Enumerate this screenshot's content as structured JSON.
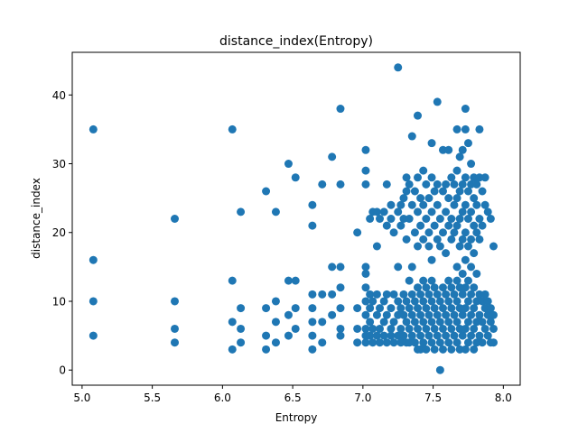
{
  "chart_data": {
    "type": "scatter",
    "title": "distance_index(Entropy)",
    "xlabel": "Entropy",
    "ylabel": "distance_index",
    "xlim": [
      4.93,
      8.12
    ],
    "ylim": [
      -2.2,
      46.2
    ],
    "xticks": [
      5.0,
      5.5,
      6.0,
      6.5,
      7.0,
      7.5,
      8.0
    ],
    "xtick_labels": [
      "5.0",
      "5.5",
      "6.0",
      "6.5",
      "7.0",
      "7.5",
      "8.0"
    ],
    "yticks": [
      0,
      10,
      20,
      30,
      40
    ],
    "ytick_labels": [
      "0",
      "10",
      "20",
      "30",
      "40"
    ],
    "grid": false,
    "point_color": "#1f77b4",
    "series": [
      {
        "points": [
          [
            5.08,
            35
          ],
          [
            5.08,
            16
          ],
          [
            5.08,
            10
          ],
          [
            5.08,
            5
          ],
          [
            5.66,
            22
          ],
          [
            5.66,
            10
          ],
          [
            5.66,
            6
          ],
          [
            5.66,
            4
          ],
          [
            6.07,
            35
          ],
          [
            6.07,
            13
          ],
          [
            6.07,
            7
          ],
          [
            6.07,
            3
          ],
          [
            6.13,
            23
          ],
          [
            6.13,
            9
          ],
          [
            6.13,
            6
          ],
          [
            6.13,
            4
          ],
          [
            6.31,
            26
          ],
          [
            6.31,
            9
          ],
          [
            6.31,
            5
          ],
          [
            6.31,
            3
          ],
          [
            6.38,
            23
          ],
          [
            6.38,
            10
          ],
          [
            6.38,
            7
          ],
          [
            6.38,
            4
          ],
          [
            6.47,
            30
          ],
          [
            6.47,
            13
          ],
          [
            6.47,
            8
          ],
          [
            6.47,
            5
          ],
          [
            6.52,
            28
          ],
          [
            6.52,
            13
          ],
          [
            6.52,
            9
          ],
          [
            6.52,
            6
          ],
          [
            6.64,
            24
          ],
          [
            6.64,
            21
          ],
          [
            6.64,
            11
          ],
          [
            6.64,
            9
          ],
          [
            6.64,
            7
          ],
          [
            6.64,
            5
          ],
          [
            6.64,
            3
          ],
          [
            6.71,
            27
          ],
          [
            6.71,
            11
          ],
          [
            6.71,
            7
          ],
          [
            6.71,
            4
          ],
          [
            6.78,
            31
          ],
          [
            6.78,
            15
          ],
          [
            6.78,
            11
          ],
          [
            6.78,
            8
          ],
          [
            6.84,
            38
          ],
          [
            6.84,
            27
          ],
          [
            6.84,
            15
          ],
          [
            6.84,
            12
          ],
          [
            6.84,
            9
          ],
          [
            6.84,
            6
          ],
          [
            6.84,
            5
          ],
          [
            6.96,
            20
          ],
          [
            6.96,
            9
          ],
          [
            6.96,
            6
          ],
          [
            6.96,
            4
          ],
          [
            7.02,
            32
          ],
          [
            7.02,
            29
          ],
          [
            7.02,
            27
          ],
          [
            7.02,
            15
          ],
          [
            7.02,
            14
          ],
          [
            7.02,
            12
          ],
          [
            7.02,
            10
          ],
          [
            7.02,
            8
          ],
          [
            7.02,
            6
          ],
          [
            7.02,
            5
          ],
          [
            7.02,
            4
          ],
          [
            7.05,
            22
          ],
          [
            7.05,
            11
          ],
          [
            7.05,
            9
          ],
          [
            7.05,
            7
          ],
          [
            7.05,
            5
          ],
          [
            7.07,
            23
          ],
          [
            7.07,
            10
          ],
          [
            7.07,
            6
          ],
          [
            7.07,
            4
          ],
          [
            7.1,
            23
          ],
          [
            7.1,
            18
          ],
          [
            7.1,
            11
          ],
          [
            7.1,
            8
          ],
          [
            7.1,
            5
          ],
          [
            7.12,
            22
          ],
          [
            7.12,
            9
          ],
          [
            7.12,
            6
          ],
          [
            7.12,
            4
          ],
          [
            7.15,
            23
          ],
          [
            7.15,
            10
          ],
          [
            7.15,
            7
          ],
          [
            7.15,
            5
          ],
          [
            7.17,
            27
          ],
          [
            7.17,
            21
          ],
          [
            7.17,
            11
          ],
          [
            7.17,
            8
          ],
          [
            7.17,
            4
          ],
          [
            7.2,
            24
          ],
          [
            7.2,
            22
          ],
          [
            7.2,
            9
          ],
          [
            7.2,
            6
          ],
          [
            7.2,
            5
          ],
          [
            7.22,
            20
          ],
          [
            7.22,
            11
          ],
          [
            7.22,
            7
          ],
          [
            7.22,
            4
          ],
          [
            7.25,
            44
          ],
          [
            7.25,
            23
          ],
          [
            7.25,
            15
          ],
          [
            7.25,
            10
          ],
          [
            7.25,
            8
          ],
          [
            7.25,
            5
          ],
          [
            7.27,
            24
          ],
          [
            7.27,
            21
          ],
          [
            7.27,
            9
          ],
          [
            7.27,
            6
          ],
          [
            7.27,
            4
          ],
          [
            7.29,
            25
          ],
          [
            7.29,
            22
          ],
          [
            7.29,
            11
          ],
          [
            7.29,
            8
          ],
          [
            7.29,
            5
          ],
          [
            7.31,
            28
          ],
          [
            7.31,
            26
          ],
          [
            7.31,
            19
          ],
          [
            7.31,
            10
          ],
          [
            7.31,
            7
          ],
          [
            7.31,
            4
          ],
          [
            7.33,
            27
          ],
          [
            7.33,
            22
          ],
          [
            7.33,
            13
          ],
          [
            7.33,
            9
          ],
          [
            7.33,
            6
          ],
          [
            7.33,
            4
          ],
          [
            7.35,
            34
          ],
          [
            7.35,
            24
          ],
          [
            7.35,
            15
          ],
          [
            7.35,
            11
          ],
          [
            7.35,
            8
          ],
          [
            7.35,
            5
          ],
          [
            7.37,
            26
          ],
          [
            7.37,
            20
          ],
          [
            7.37,
            10
          ],
          [
            7.37,
            7
          ],
          [
            7.37,
            4
          ],
          [
            7.39,
            37
          ],
          [
            7.39,
            28
          ],
          [
            7.39,
            23
          ],
          [
            7.39,
            18
          ],
          [
            7.39,
            12
          ],
          [
            7.39,
            9
          ],
          [
            7.39,
            6
          ],
          [
            7.39,
            3
          ],
          [
            7.41,
            25
          ],
          [
            7.41,
            21
          ],
          [
            7.41,
            11
          ],
          [
            7.41,
            8
          ],
          [
            7.41,
            5
          ],
          [
            7.41,
            3
          ],
          [
            7.43,
            29
          ],
          [
            7.43,
            24
          ],
          [
            7.43,
            19
          ],
          [
            7.43,
            13
          ],
          [
            7.43,
            10
          ],
          [
            7.43,
            7
          ],
          [
            7.43,
            4
          ],
          [
            7.45,
            27
          ],
          [
            7.45,
            22
          ],
          [
            7.45,
            12
          ],
          [
            7.45,
            9
          ],
          [
            7.45,
            6
          ],
          [
            7.45,
            3
          ],
          [
            7.47,
            25
          ],
          [
            7.47,
            20
          ],
          [
            7.47,
            18
          ],
          [
            7.47,
            11
          ],
          [
            7.47,
            8
          ],
          [
            7.47,
            5
          ],
          [
            7.49,
            33
          ],
          [
            7.49,
            28
          ],
          [
            7.49,
            23
          ],
          [
            7.49,
            16
          ],
          [
            7.49,
            13
          ],
          [
            7.49,
            10
          ],
          [
            7.49,
            7
          ],
          [
            7.49,
            4
          ],
          [
            7.51,
            26
          ],
          [
            7.51,
            21
          ],
          [
            7.51,
            12
          ],
          [
            7.51,
            9
          ],
          [
            7.51,
            6
          ],
          [
            7.51,
            3
          ],
          [
            7.53,
            39
          ],
          [
            7.53,
            27
          ],
          [
            7.53,
            24
          ],
          [
            7.53,
            19
          ],
          [
            7.53,
            11
          ],
          [
            7.53,
            8
          ],
          [
            7.53,
            5
          ],
          [
            7.55,
            0
          ],
          [
            7.55,
            22
          ],
          [
            7.55,
            18
          ],
          [
            7.55,
            10
          ],
          [
            7.55,
            7
          ],
          [
            7.55,
            4
          ],
          [
            7.57,
            32
          ],
          [
            7.57,
            26
          ],
          [
            7.57,
            20
          ],
          [
            7.57,
            12
          ],
          [
            7.57,
            9
          ],
          [
            7.57,
            6
          ],
          [
            7.57,
            3
          ],
          [
            7.59,
            27
          ],
          [
            7.59,
            23
          ],
          [
            7.59,
            17
          ],
          [
            7.59,
            11
          ],
          [
            7.59,
            8
          ],
          [
            7.59,
            5
          ],
          [
            7.61,
            32
          ],
          [
            7.61,
            25
          ],
          [
            7.61,
            21
          ],
          [
            7.61,
            13
          ],
          [
            7.61,
            10
          ],
          [
            7.61,
            7
          ],
          [
            7.61,
            4
          ],
          [
            7.63,
            28
          ],
          [
            7.63,
            22
          ],
          [
            7.63,
            19
          ],
          [
            7.63,
            12
          ],
          [
            7.63,
            9
          ],
          [
            7.63,
            6
          ],
          [
            7.63,
            3
          ],
          [
            7.65,
            27
          ],
          [
            7.65,
            24
          ],
          [
            7.65,
            20
          ],
          [
            7.65,
            11
          ],
          [
            7.65,
            8
          ],
          [
            7.65,
            5
          ],
          [
            7.67,
            35
          ],
          [
            7.67,
            29
          ],
          [
            7.67,
            25
          ],
          [
            7.67,
            21
          ],
          [
            7.67,
            15
          ],
          [
            7.67,
            13
          ],
          [
            7.67,
            10
          ],
          [
            7.67,
            7
          ],
          [
            7.67,
            4
          ],
          [
            7.69,
            31
          ],
          [
            7.69,
            26
          ],
          [
            7.69,
            22
          ],
          [
            7.69,
            18
          ],
          [
            7.69,
            12
          ],
          [
            7.69,
            9
          ],
          [
            7.69,
            6
          ],
          [
            7.69,
            3
          ],
          [
            7.71,
            32
          ],
          [
            7.71,
            27
          ],
          [
            7.71,
            23
          ],
          [
            7.71,
            19
          ],
          [
            7.71,
            14
          ],
          [
            7.71,
            11
          ],
          [
            7.71,
            8
          ],
          [
            7.71,
            5
          ],
          [
            7.73,
            38
          ],
          [
            7.73,
            35
          ],
          [
            7.73,
            28
          ],
          [
            7.73,
            24
          ],
          [
            7.73,
            20
          ],
          [
            7.73,
            16
          ],
          [
            7.73,
            12
          ],
          [
            7.73,
            9
          ],
          [
            7.73,
            6
          ],
          [
            7.73,
            3
          ],
          [
            7.75,
            33
          ],
          [
            7.75,
            26
          ],
          [
            7.75,
            22
          ],
          [
            7.75,
            18
          ],
          [
            7.75,
            13
          ],
          [
            7.75,
            10
          ],
          [
            7.75,
            7
          ],
          [
            7.75,
            4
          ],
          [
            7.77,
            30
          ],
          [
            7.77,
            27
          ],
          [
            7.77,
            23
          ],
          [
            7.77,
            19
          ],
          [
            7.77,
            15
          ],
          [
            7.77,
            11
          ],
          [
            7.77,
            8
          ],
          [
            7.77,
            5
          ],
          [
            7.79,
            28
          ],
          [
            7.79,
            25
          ],
          [
            7.79,
            21
          ],
          [
            7.79,
            17
          ],
          [
            7.79,
            12
          ],
          [
            7.79,
            9
          ],
          [
            7.79,
            6
          ],
          [
            7.79,
            3
          ],
          [
            7.81,
            27
          ],
          [
            7.81,
            24
          ],
          [
            7.81,
            20
          ],
          [
            7.81,
            14
          ],
          [
            7.81,
            10
          ],
          [
            7.81,
            7
          ],
          [
            7.81,
            4
          ],
          [
            7.83,
            35
          ],
          [
            7.83,
            28
          ],
          [
            7.83,
            22
          ],
          [
            7.83,
            19
          ],
          [
            7.83,
            11
          ],
          [
            7.83,
            8
          ],
          [
            7.83,
            5
          ],
          [
            7.85,
            26
          ],
          [
            7.85,
            21
          ],
          [
            7.85,
            10
          ],
          [
            7.85,
            7
          ],
          [
            7.85,
            4
          ],
          [
            7.87,
            28
          ],
          [
            7.87,
            24
          ],
          [
            7.87,
            11
          ],
          [
            7.87,
            9
          ],
          [
            7.87,
            6
          ],
          [
            7.89,
            23
          ],
          [
            7.89,
            10
          ],
          [
            7.89,
            8
          ],
          [
            7.89,
            5
          ],
          [
            7.91,
            22
          ],
          [
            7.91,
            9
          ],
          [
            7.91,
            7
          ],
          [
            7.91,
            4
          ],
          [
            7.93,
            18
          ],
          [
            7.93,
            8
          ],
          [
            7.93,
            6
          ],
          [
            7.93,
            4
          ]
        ]
      }
    ]
  }
}
